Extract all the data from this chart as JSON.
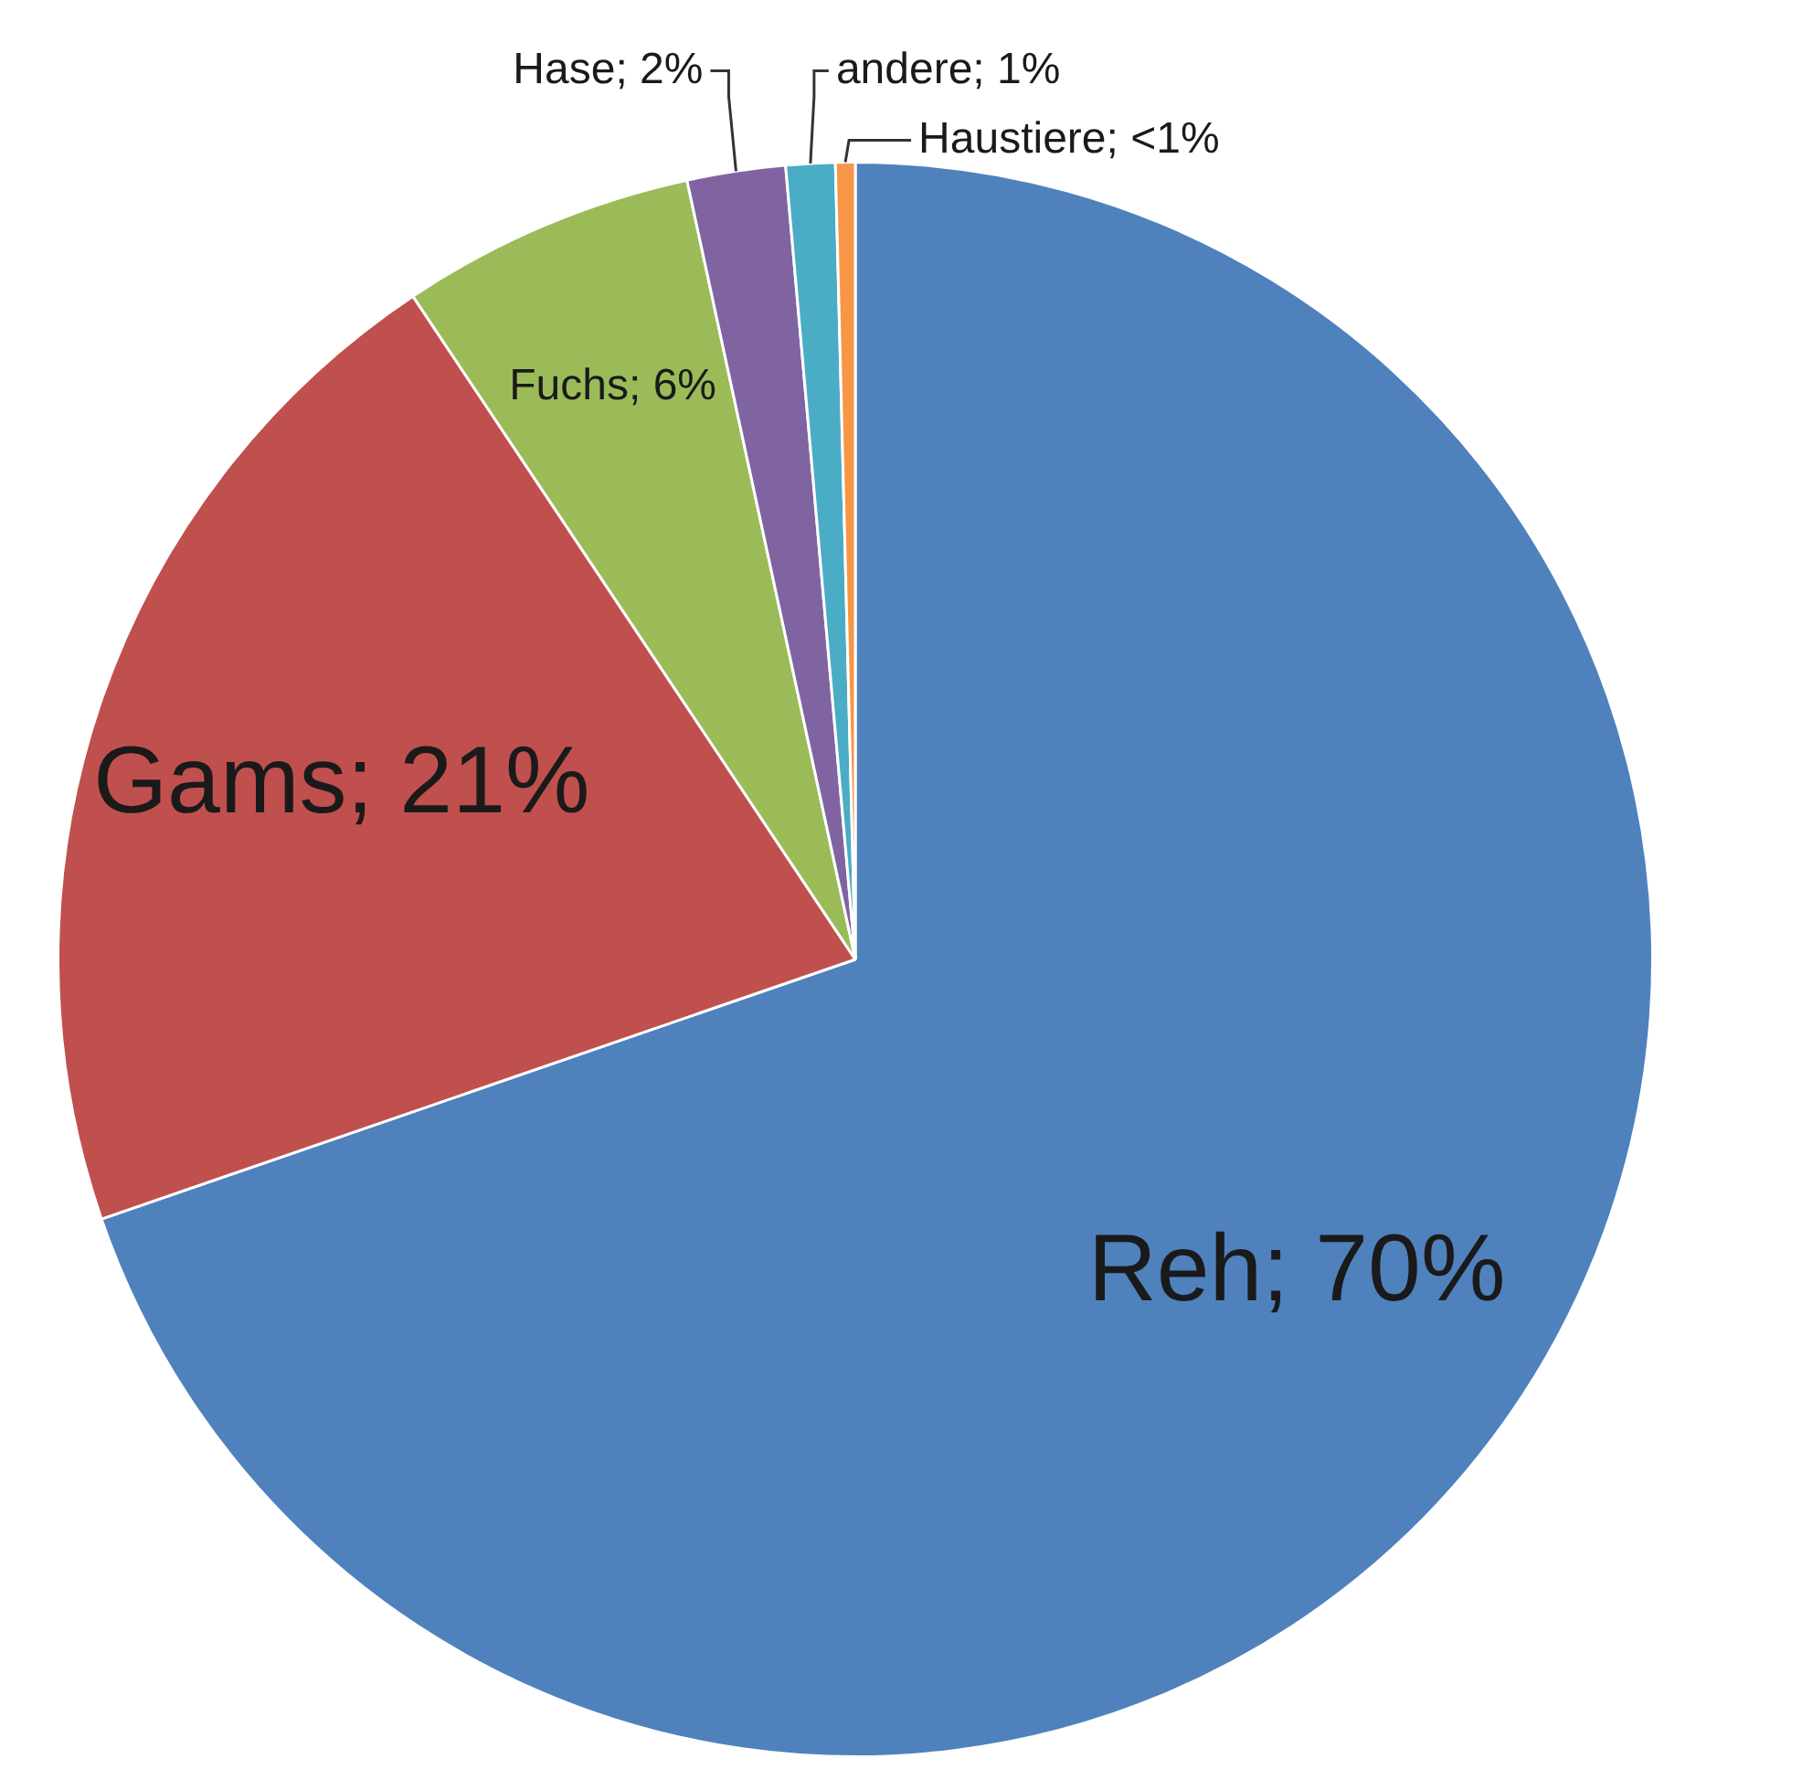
{
  "chart_data": {
    "type": "pie",
    "categories": [
      "Reh",
      "Gams",
      "Fuchs",
      "Hase",
      "andere",
      "Haustiere"
    ],
    "values": [
      70,
      21,
      6,
      2,
      1,
      0.4
    ],
    "value_labels": [
      "70%",
      "21%",
      "6%",
      "2%",
      "1%",
      "<1%"
    ],
    "colors": [
      "#4f81bd",
      "#c0504d",
      "#9bbb59",
      "#8064a2",
      "#4bacc6",
      "#f79646"
    ],
    "legend": false
  }
}
